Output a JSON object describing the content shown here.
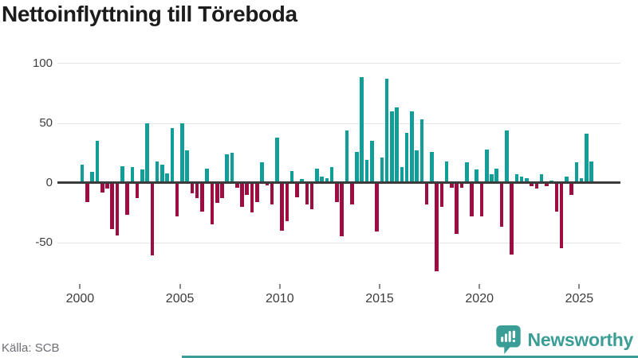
{
  "title": "Nettoinflyttning till Töreboda",
  "source": "Källa: SCB",
  "branding": {
    "name": "Newsworthy"
  },
  "colors": {
    "positive": "#119e98",
    "negative": "#9e0d41",
    "brand": "#3a9e96",
    "grid": "#e4e4e4",
    "zero_line": "#3b3b3b",
    "axis_text": "#3d3d3d",
    "source_text": "#6e6e76",
    "title_text": "#1c1c1c"
  },
  "chart_data": {
    "type": "bar",
    "title": "Nettoinflyttning till Töreboda",
    "legend": "none",
    "grid": "horizontal",
    "ylim": [
      -80,
      100
    ],
    "ytick_values": [
      100,
      50,
      0,
      -50
    ],
    "ytick_labels": [
      "100",
      "50",
      "0",
      "-50"
    ],
    "xtick_years": [
      2000,
      2005,
      2010,
      2015,
      2020,
      2025
    ],
    "xtick_labels": [
      "2000",
      "2005",
      "2010",
      "2015",
      "2020",
      "2025"
    ],
    "x": [
      "2000-Q1",
      "2000-Q2",
      "2000-Q3",
      "2000-Q4",
      "2001-Q1",
      "2001-Q2",
      "2001-Q3",
      "2001-Q4",
      "2002-Q1",
      "2002-Q2",
      "2002-Q3",
      "2002-Q4",
      "2003-Q1",
      "2003-Q2",
      "2003-Q3",
      "2003-Q4",
      "2004-Q1",
      "2004-Q2",
      "2004-Q3",
      "2004-Q4",
      "2005-Q1",
      "2005-Q2",
      "2005-Q3",
      "2005-Q4",
      "2006-Q1",
      "2006-Q2",
      "2006-Q3",
      "2006-Q4",
      "2007-Q1",
      "2007-Q2",
      "2007-Q3",
      "2007-Q4",
      "2008-Q1",
      "2008-Q2",
      "2008-Q3",
      "2008-Q4",
      "2009-Q1",
      "2009-Q2",
      "2009-Q3",
      "2009-Q4",
      "2010-Q1",
      "2010-Q2",
      "2010-Q3",
      "2010-Q4",
      "2011-Q1",
      "2011-Q2",
      "2011-Q3",
      "2011-Q4",
      "2012-Q1",
      "2012-Q2",
      "2012-Q3",
      "2012-Q4",
      "2013-Q1",
      "2013-Q2",
      "2013-Q3",
      "2013-Q4",
      "2014-Q1",
      "2014-Q2",
      "2014-Q3",
      "2014-Q4",
      "2015-Q1",
      "2015-Q2",
      "2015-Q3",
      "2015-Q4",
      "2016-Q1",
      "2016-Q2",
      "2016-Q3",
      "2016-Q4",
      "2017-Q1",
      "2017-Q2",
      "2017-Q3",
      "2017-Q4",
      "2018-Q1",
      "2018-Q2",
      "2018-Q3",
      "2018-Q4",
      "2019-Q1",
      "2019-Q2",
      "2019-Q3",
      "2019-Q4",
      "2020-Q1",
      "2020-Q2",
      "2020-Q3",
      "2020-Q4",
      "2021-Q1",
      "2021-Q2",
      "2021-Q3",
      "2021-Q4",
      "2022-Q1",
      "2022-Q2",
      "2022-Q3",
      "2022-Q4",
      "2023-Q1",
      "2023-Q2",
      "2023-Q3",
      "2023-Q4",
      "2024-Q1",
      "2024-Q2",
      "2024-Q3",
      "2024-Q4",
      "2025-Q1",
      "2025-Q2",
      "2025-Q3"
    ],
    "values": [
      15,
      -16,
      9,
      35,
      -8,
      -5,
      -39,
      -44,
      14,
      -27,
      13,
      -13,
      11,
      50,
      -61,
      18,
      15,
      8,
      46,
      -28,
      50,
      27,
      -9,
      -13,
      -24,
      12,
      -35,
      -17,
      -13,
      24,
      25,
      -4,
      -20,
      -10,
      -25,
      -16,
      17,
      -2,
      -18,
      38,
      -40,
      -32,
      10,
      -12,
      3,
      -18,
      -22,
      12,
      5,
      4,
      13,
      -16,
      -45,
      44,
      -18,
      26,
      88,
      19,
      35,
      -41,
      21,
      87,
      60,
      63,
      13,
      42,
      60,
      27,
      53,
      -18,
      26,
      -74,
      -20,
      18,
      -4,
      -43,
      -4,
      17,
      -28,
      11,
      -28,
      28,
      7,
      12,
      -37,
      44,
      -60,
      7,
      5,
      4,
      -3,
      -5,
      7,
      -3,
      2,
      -24,
      -55,
      5,
      -10,
      17,
      4,
      41,
      18
    ]
  }
}
